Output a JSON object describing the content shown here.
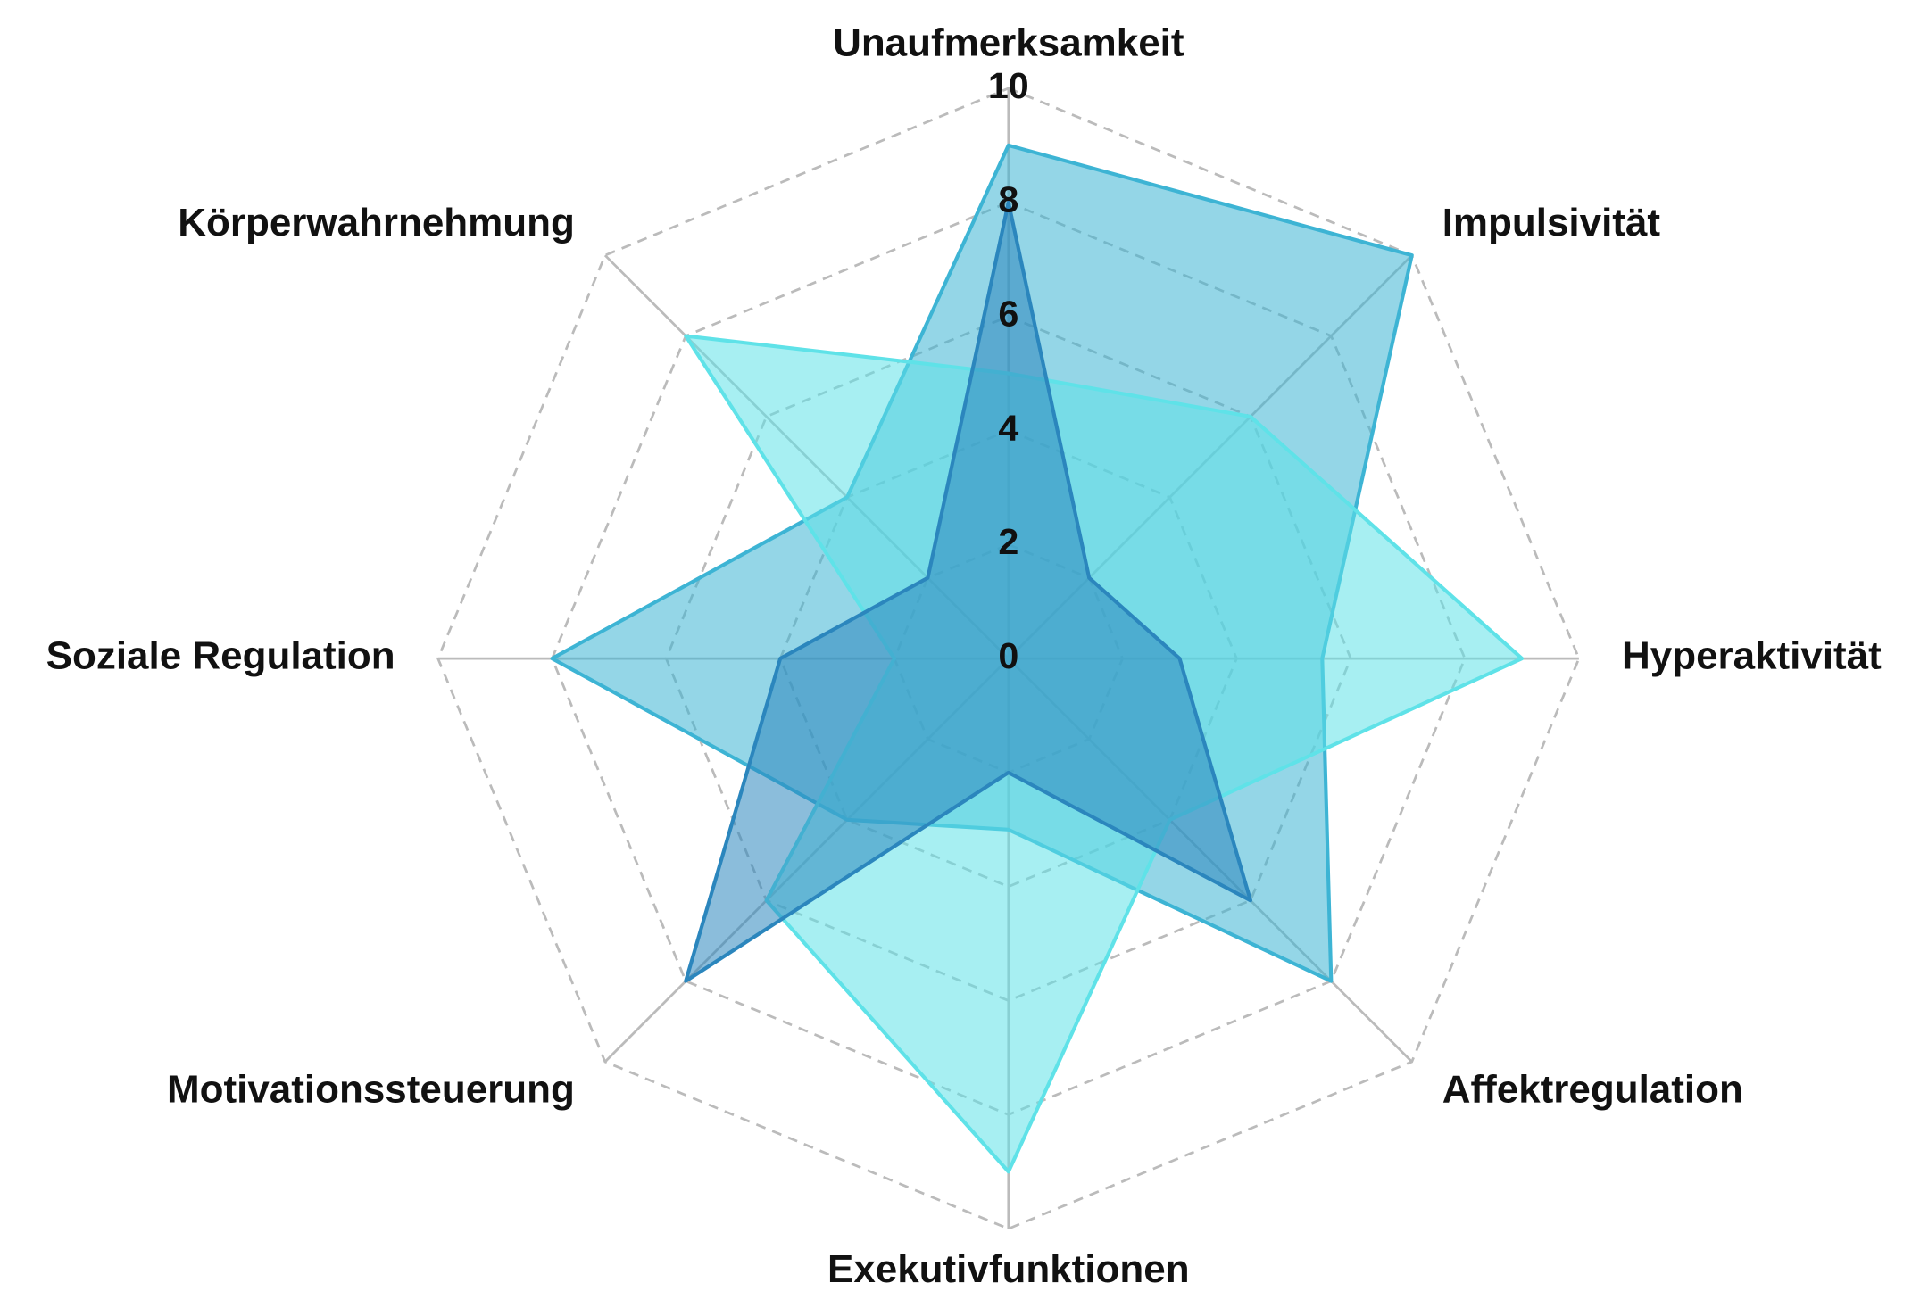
{
  "chart_data": {
    "type": "radar",
    "categories": [
      "Unaufmerksamkeit",
      "Impulsivität",
      "Hyperaktivität",
      "Affektregulation",
      "Exekutivfunktionen",
      "Motivationssteuerung",
      "Soziale Regulation",
      "Körperwahrnehmung"
    ],
    "series": [
      {
        "color": "#3db4d4",
        "values": [
          9,
          10,
          5.5,
          8,
          3,
          4,
          8,
          4
        ]
      },
      {
        "color": "#5fe2e8",
        "values": [
          5,
          6,
          9,
          4,
          9,
          6,
          2,
          8
        ]
      },
      {
        "color": "#2b86bd",
        "values": [
          8,
          2,
          3,
          6,
          2,
          8,
          4,
          2
        ]
      }
    ],
    "ylim": [
      0,
      10
    ],
    "yticks": [
      0,
      2,
      4,
      6,
      8,
      10
    ],
    "grid": true
  }
}
